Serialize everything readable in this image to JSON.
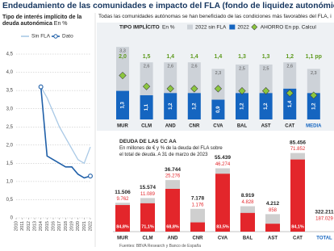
{
  "title": "Endeudamiento de las comunidades e impacto del FLA (fondo de liquidez autonómico)",
  "source": "Fuentes: BBVA Research y Banco de España",
  "chart_data": [
    {
      "type": "line",
      "title": "Tipo de interés implícito de la deuda autonómica",
      "unit": "En %",
      "x": [
        2010,
        2011,
        2012,
        2013,
        2014,
        2015,
        2016,
        2017,
        2018,
        2019,
        2020,
        2021,
        2022
      ],
      "xlim": [
        2010,
        2022
      ],
      "ylim": [
        0,
        4.7
      ],
      "yticks": [
        0,
        {
          "value": 0.5,
          "label": "0,5"
        },
        {
          "value": 1,
          "label": "1,0"
        },
        {
          "value": 1.5,
          "label": "1,5"
        },
        {
          "value": 2,
          "label": "2,0"
        },
        {
          "value": 2.5,
          "label": "2,5"
        },
        {
          "value": 3,
          "label": "3,0"
        },
        {
          "value": 3.5,
          "label": "3,5"
        },
        {
          "value": 4,
          "label": "4,0"
        },
        {
          "value": 4.5,
          "label": "4,5"
        }
      ],
      "grid": true,
      "series": [
        {
          "name": "Sin FLA",
          "color": "#a9c9e6",
          "values": [
            null,
            null,
            null,
            null,
            3.6,
            3.3,
            2.9,
            2.5,
            2.2,
            1.9,
            1.6,
            1.5,
            1.95
          ]
        },
        {
          "name": "Dato",
          "color": "#1f5fa8",
          "values": [
            null,
            null,
            null,
            null,
            3.6,
            1.7,
            1.6,
            1.5,
            1.4,
            1.4,
            1.2,
            1.1,
            1.15
          ]
        }
      ]
    },
    {
      "type": "bar",
      "note": "Todas las comunidades autónomas se han beneficiado de las condiciones más favorables del FLA, i",
      "title": "TIPO IMPLÍCITO",
      "unit": "En %",
      "categories": [
        "MUR",
        "CLM",
        "AND",
        "CNR",
        "CVA",
        "BAL",
        "AST",
        "CAT",
        "MEDIA"
      ],
      "ylim": [
        0,
        3.6
      ],
      "series": [
        {
          "name": "2022 sin FLA",
          "color": "#cdd2d8",
          "values": [
            3.3,
            2.6,
            2.6,
            2.6,
            2.3,
            2.5,
            2.5,
            2.6,
            2.3
          ],
          "value_labels": [
            "3,3",
            "2,6",
            "2,6",
            "2,6",
            "2,3",
            "2,5",
            "2,5",
            "2,6",
            "2,3"
          ]
        },
        {
          "name": "2022",
          "color": "#1565c0",
          "values": [
            1.3,
            1.1,
            1.2,
            1.2,
            0.9,
            1.2,
            1.2,
            1.4,
            1.2
          ],
          "value_labels": [
            "1,3",
            "1,1",
            "1,2",
            "1,2",
            "0,9",
            "1,2",
            "1,2",
            "1,4",
            "1,2"
          ]
        },
        {
          "name": "AHORRO En pp. Calcul",
          "color": "#8cc63f",
          "marker": "diamond",
          "values": [
            2.0,
            1.5,
            1.4,
            1.4,
            1.4,
            1.3,
            1.3,
            1.2,
            1.1
          ],
          "value_labels": [
            "2,0",
            "1,5",
            "1,4",
            "1,4",
            "1,4",
            "1,3",
            "1,3",
            "1,2",
            "1,1 pp"
          ]
        }
      ]
    },
    {
      "type": "bar",
      "title": "DEUDA DE LAS CC AA",
      "subtitle": "En millones de € y % de la deuda del FLA sobre el total de deuda. A 31 de marzo de 2023",
      "categories": [
        "MUR",
        "CLM",
        "AND",
        "CNR",
        "CVA",
        "BAL",
        "AST",
        "CAT"
      ],
      "ylim": [
        0,
        90000
      ],
      "scale": "sqrt",
      "series": [
        {
          "color": "#cfcfcf",
          "values": [
            11506,
            15574,
            36744,
            7178,
            55439,
            8919,
            4212,
            85456
          ],
          "value_labels": [
            "11.506",
            "15.574",
            "36.744",
            "7.178",
            "55.439",
            "8.919",
            "4.212",
            "85.456"
          ]
        },
        {
          "color": "#e3262b",
          "values": [
            9762,
            11089,
            25276,
            1176,
            46274,
            4828,
            858,
            71852
          ],
          "value_labels": [
            "9.762",
            "11.089",
            "25.276",
            "1.176",
            "46.274",
            "4.828",
            "858",
            "71.852"
          ]
        }
      ],
      "fla_share": {
        "values": [
          84.8,
          71.1,
          68.8,
          null,
          83.5,
          null,
          null,
          84.1
        ],
        "value_labels": [
          "84,8%",
          "71,1%",
          "68,8%",
          null,
          "83,5%",
          null,
          null,
          "84,1%"
        ]
      },
      "total": {
        "category": "TOTAL",
        "values": [
          322211,
          187029
        ],
        "value_labels": [
          "322.211",
          "187.029"
        ]
      }
    }
  ]
}
